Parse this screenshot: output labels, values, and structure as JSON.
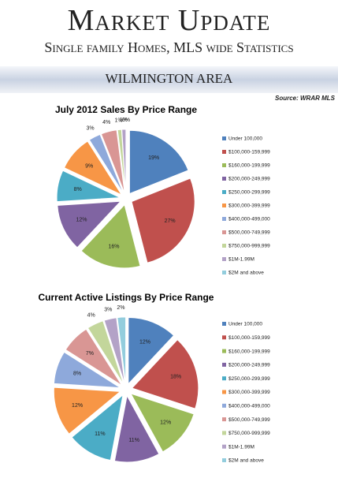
{
  "header": {
    "title": "Market Update",
    "subtitle": "Single family Homes, MLS wide Statistics",
    "area": "WILMINGTON AREA",
    "source": "Source: WRAR MLS"
  },
  "chart_data": [
    {
      "type": "pie",
      "title": "July 2012 Sales By Price Range",
      "categories": [
        "Under 100,000",
        "$100,000-159,999",
        "$160,000-199,999",
        "$200,000-249,999",
        "$250,000-299,999",
        "$300,000-399,999",
        "$400,000-499,000",
        "$500,000-749,999",
        "$750,000-999,999",
        "$1M-1.99M",
        "$2M and above"
      ],
      "values": [
        19,
        27,
        16,
        12,
        8,
        9,
        3,
        4,
        1,
        1,
        0
      ],
      "value_labels": [
        "19%",
        "27%",
        "16%",
        "12%",
        "8%",
        "9%",
        "3%",
        "4%",
        "1%",
        "1%",
        "0%"
      ],
      "colors": [
        "#4f81bd",
        "#c0504d",
        "#9bbb59",
        "#8064a2",
        "#4bacc6",
        "#f79646",
        "#8ea9db",
        "#d99694",
        "#c3d69b",
        "#b3a2c7",
        "#93cddd"
      ]
    },
    {
      "type": "pie",
      "title": "Current Active Listings By Price Range",
      "categories": [
        "Under 100,000",
        "$100,000-159,999",
        "$160,000-199,999",
        "$200,000-249,999",
        "$250,000-299,999",
        "$300,000-399,999",
        "$400,000-499,000",
        "$500,000-749,999",
        "$750,000-999,999",
        "$1M-1.99M",
        "$2M and above"
      ],
      "values": [
        12,
        18,
        12,
        11,
        11,
        12,
        8,
        7,
        4,
        3,
        2
      ],
      "value_labels": [
        "12%",
        "18%",
        "12%",
        "11%",
        "11%",
        "12%",
        "8%",
        "7%",
        "4%",
        "3%",
        "2%"
      ],
      "colors": [
        "#4f81bd",
        "#c0504d",
        "#9bbb59",
        "#8064a2",
        "#4bacc6",
        "#f79646",
        "#8ea9db",
        "#d99694",
        "#c3d69b",
        "#b3a2c7",
        "#93cddd"
      ]
    }
  ]
}
